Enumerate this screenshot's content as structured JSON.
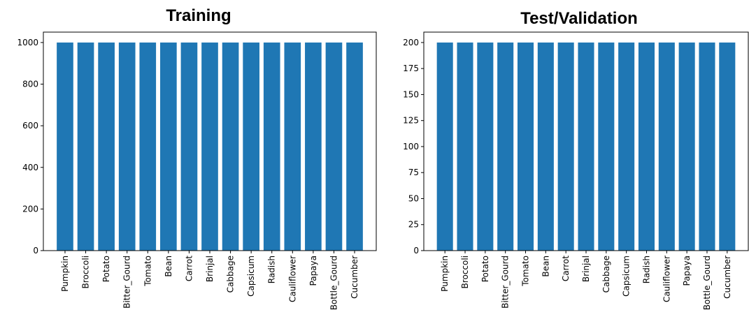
{
  "chart_data": [
    {
      "type": "bar",
      "title": "Training",
      "xlabel": "",
      "ylabel": "",
      "categories": [
        "Pumpkin",
        "Broccoli",
        "Potato",
        "Bitter_Gourd",
        "Tomato",
        "Bean",
        "Carrot",
        "Brinjal",
        "Cabbage",
        "Capsicum",
        "Radish",
        "Cauliflower",
        "Papaya",
        "Bottle_Gourd",
        "Cucumber"
      ],
      "values": [
        1000,
        1000,
        1000,
        1000,
        1000,
        1000,
        1000,
        1000,
        1000,
        1000,
        1000,
        1000,
        1000,
        1000,
        1000
      ],
      "ylim": [
        0,
        1050
      ],
      "yticks": [
        0,
        200,
        400,
        600,
        800,
        1000
      ],
      "grid": false,
      "bar_color": "#1f77b4"
    },
    {
      "type": "bar",
      "title": "Test/Validation",
      "xlabel": "",
      "ylabel": "",
      "categories": [
        "Pumpkin",
        "Broccoli",
        "Potato",
        "Bitter_Gourd",
        "Tomato",
        "Bean",
        "Carrot",
        "Brinjal",
        "Cabbage",
        "Capsicum",
        "Radish",
        "Cauliflower",
        "Papaya",
        "Bottle_Gourd",
        "Cucumber"
      ],
      "values": [
        200,
        200,
        200,
        200,
        200,
        200,
        200,
        200,
        200,
        200,
        200,
        200,
        200,
        200,
        200
      ],
      "ylim": [
        0,
        210
      ],
      "yticks": [
        0,
        25,
        50,
        75,
        100,
        125,
        150,
        175,
        200
      ],
      "grid": false,
      "bar_color": "#1f77b4"
    }
  ]
}
